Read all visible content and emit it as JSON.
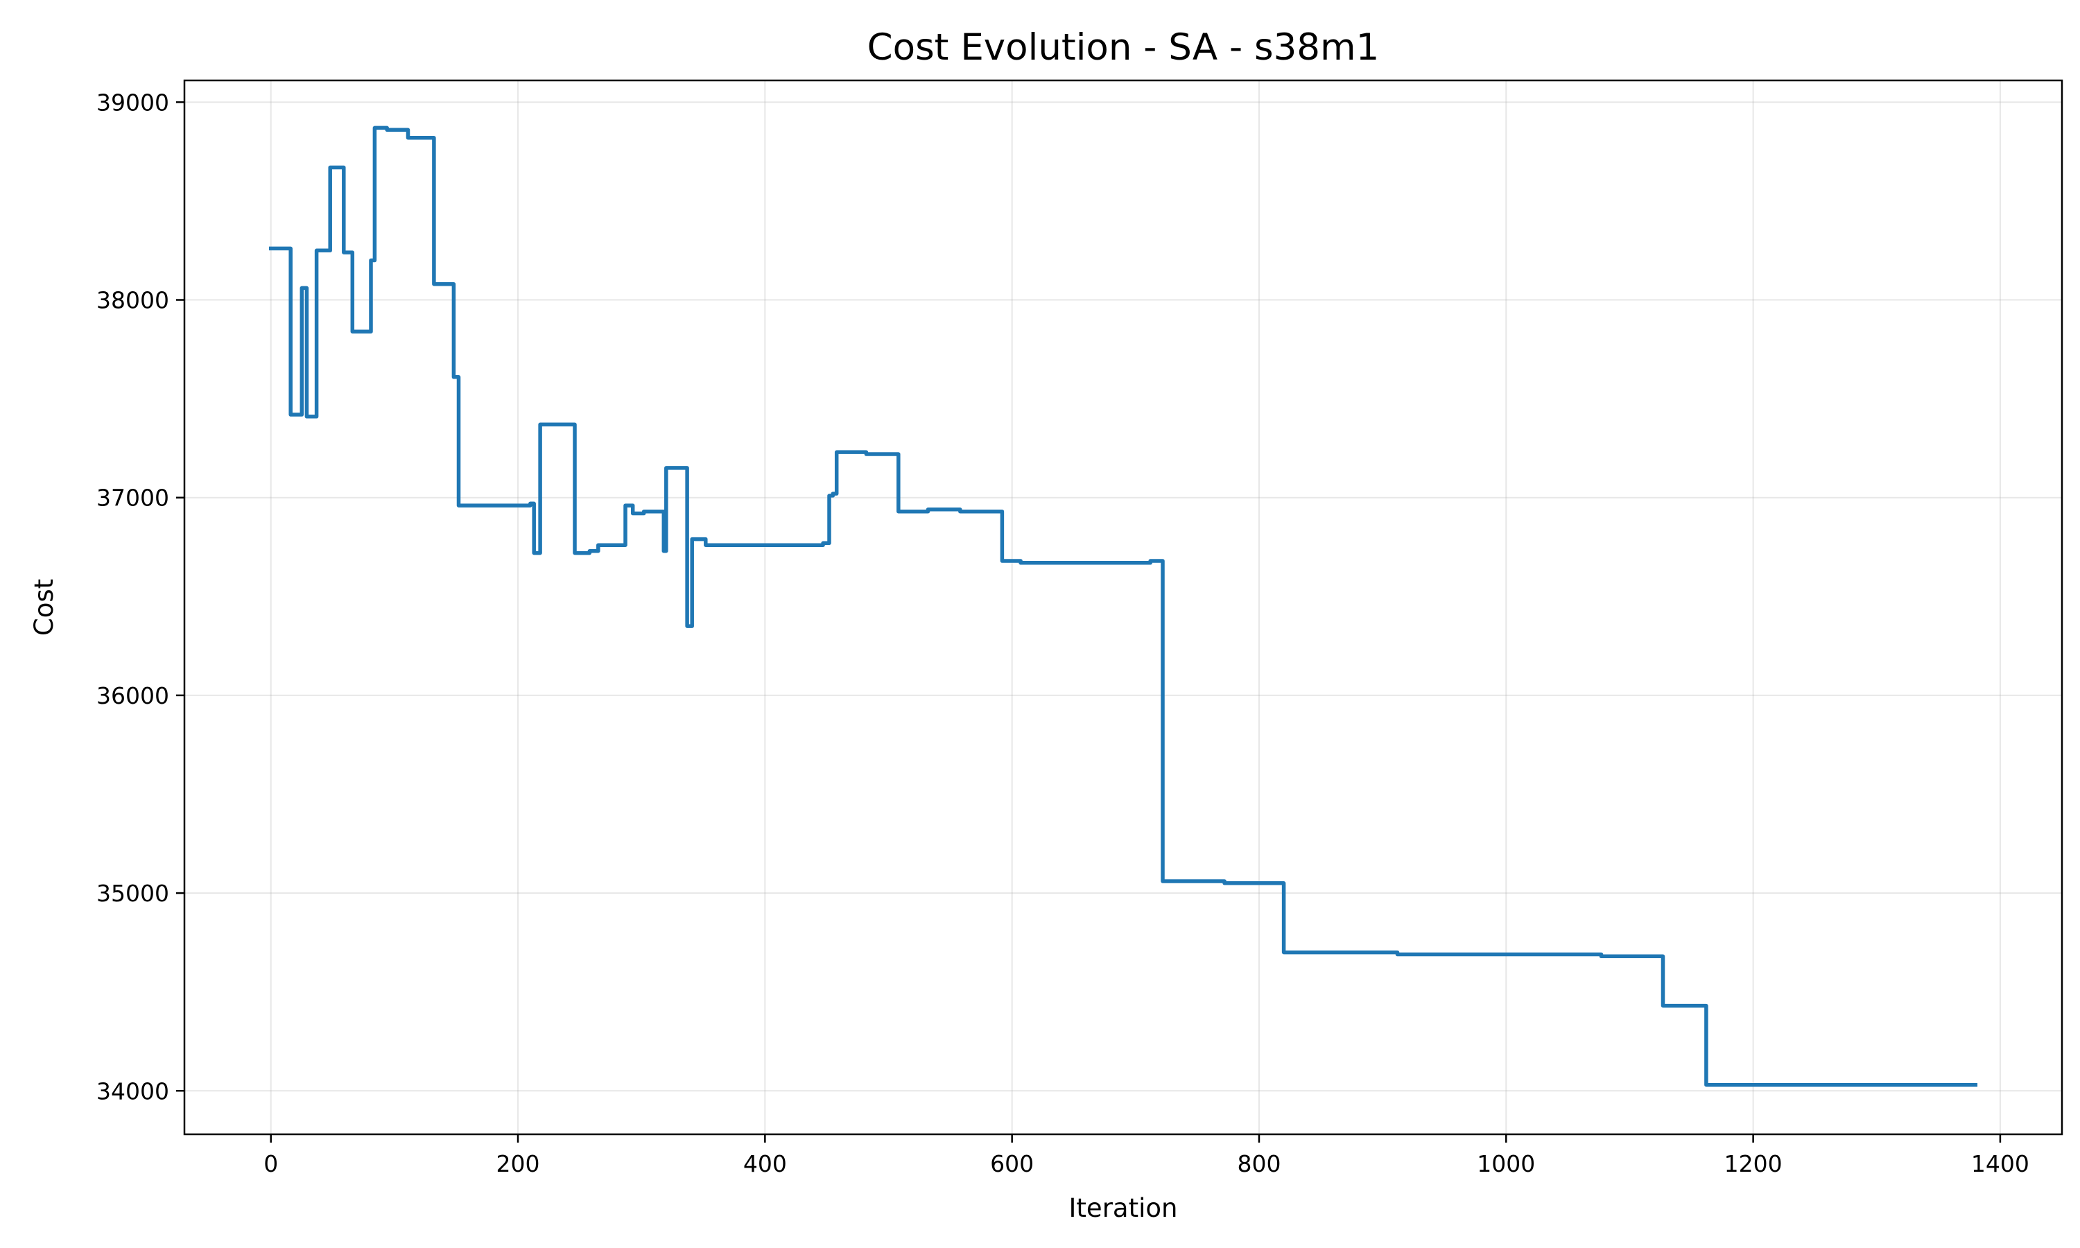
{
  "chart_data": {
    "type": "line",
    "title": "Cost Evolution - SA - s38m1",
    "xlabel": "Iteration",
    "ylabel": "Cost",
    "xlim": [
      -70,
      1450
    ],
    "ylim": [
      33780,
      39110
    ],
    "xticks": [
      0,
      200,
      400,
      600,
      800,
      1000,
      1200,
      1400
    ],
    "yticks": [
      34000,
      35000,
      36000,
      37000,
      38000,
      39000
    ],
    "grid": true,
    "step": true,
    "color": "#1f77b4",
    "series": [
      {
        "x": [
          0,
          15,
          16,
          22,
          25,
          28,
          29,
          35,
          37,
          46,
          48,
          58,
          59,
          64,
          66,
          80,
          81,
          83,
          84,
          93,
          94,
          110,
          111,
          130,
          132,
          147,
          148,
          150,
          152,
          205,
          210,
          212,
          213,
          215,
          218,
          245,
          246,
          255,
          258,
          262,
          265,
          285,
          287,
          292,
          293,
          300,
          302,
          317,
          318,
          319,
          320,
          336,
          337,
          338,
          340,
          341,
          350,
          352,
          430,
          445,
          447,
          450,
          452,
          455,
          458,
          480,
          482,
          507,
          508,
          530,
          532,
          556,
          558,
          590,
          592,
          605,
          607,
          710,
          712,
          720,
          722,
          770,
          772,
          818,
          820,
          910,
          912,
          1075,
          1077,
          1125,
          1127,
          1160,
          1162,
          1380
        ],
        "y": [
          38260,
          38260,
          37420,
          37420,
          38060,
          38060,
          37410,
          37410,
          38250,
          38250,
          38670,
          38670,
          38240,
          38240,
          37840,
          37840,
          38200,
          38200,
          38870,
          38870,
          38860,
          38860,
          38820,
          38820,
          38080,
          38080,
          37610,
          37610,
          36960,
          36960,
          36970,
          36970,
          36720,
          36720,
          37370,
          37370,
          36720,
          36720,
          36730,
          36730,
          36760,
          36760,
          36960,
          36960,
          36920,
          36920,
          36930,
          36930,
          36730,
          36730,
          37150,
          37150,
          36350,
          36350,
          36350,
          36790,
          36790,
          36760,
          36760,
          36760,
          36770,
          36770,
          37010,
          37020,
          37230,
          37230,
          37220,
          37220,
          36930,
          36930,
          36940,
          36940,
          36930,
          36930,
          36680,
          36680,
          36670,
          36670,
          36680,
          36680,
          35060,
          35060,
          35050,
          35050,
          34700,
          34700,
          34690,
          34690,
          34680,
          34680,
          34430,
          34430,
          34030,
          34030
        ]
      }
    ]
  }
}
